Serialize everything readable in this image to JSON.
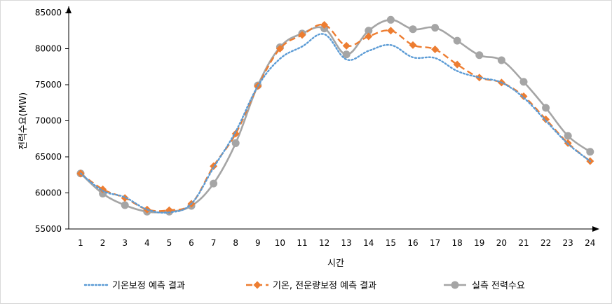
{
  "chart_data": {
    "type": "line",
    "title": "",
    "xlabel": "시간",
    "ylabel": "전력수요(MW)",
    "x": [
      1,
      2,
      3,
      4,
      5,
      6,
      7,
      8,
      9,
      10,
      11,
      12,
      13,
      14,
      15,
      16,
      17,
      18,
      19,
      20,
      21,
      22,
      23,
      24
    ],
    "ylim": [
      55000,
      85000
    ],
    "yticks": [
      55000,
      60000,
      65000,
      70000,
      75000,
      80000,
      85000
    ],
    "grid": false,
    "legend_position": "bottom",
    "series": [
      {
        "name": "기온보정 예측 결과",
        "color": "#5b9bd5",
        "line_style": "dotted",
        "marker": "none",
        "values": [
          62700,
          60300,
          59400,
          57700,
          57300,
          58500,
          63500,
          68500,
          74800,
          78600,
          80300,
          82000,
          78500,
          79700,
          80500,
          78800,
          78700,
          76900,
          76000,
          75300,
          73200,
          70000,
          66800,
          64400
        ]
      },
      {
        "name": "기온, 전운량보정 예측 결과",
        "color": "#ed7d31",
        "line_style": "dashed",
        "marker": "diamond",
        "values": [
          62700,
          60500,
          59300,
          57700,
          57600,
          58500,
          63700,
          68200,
          74800,
          80000,
          81900,
          83300,
          80400,
          81700,
          82500,
          80500,
          79900,
          77800,
          76000,
          75300,
          73400,
          70200,
          66900,
          64400
        ]
      },
      {
        "name": "실측 전력수요",
        "color": "#a5a5a5",
        "line_style": "solid",
        "marker": "circle",
        "values": [
          62700,
          59900,
          58300,
          57400,
          57400,
          58200,
          61300,
          66900,
          74900,
          80200,
          82100,
          82800,
          79200,
          82500,
          84000,
          82700,
          82900,
          81100,
          79100,
          78400,
          75400,
          71800,
          67900,
          65700
        ]
      }
    ]
  }
}
